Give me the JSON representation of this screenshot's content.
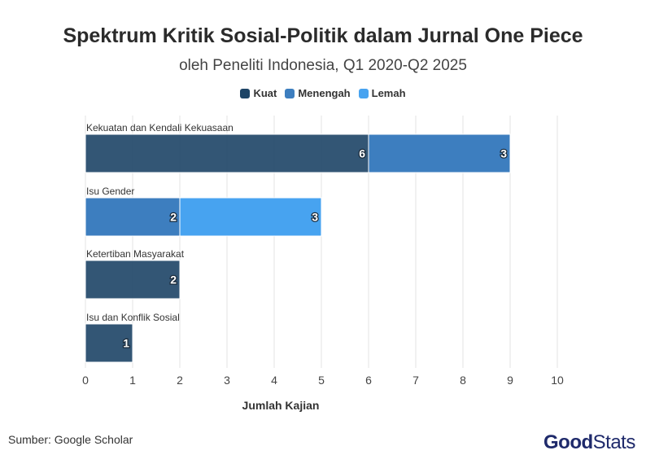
{
  "colors": {
    "Kuat": "#1d4466",
    "Menengah": "#3d7ebf",
    "Lemah": "#47a3f0"
  },
  "chart_data": {
    "type": "bar",
    "orientation": "horizontal",
    "stacked": true,
    "title": "Spektrum Kritik Sosial-Politik dalam Jurnal One Piece",
    "subtitle": "oleh Peneliti Indonesia, Q1 2020-Q2 2025",
    "xlabel": "Jumlah Kajian",
    "ylabel": "",
    "xlim": [
      0,
      10
    ],
    "xticks": [
      0,
      1,
      2,
      3,
      4,
      5,
      6,
      7,
      8,
      9,
      10
    ],
    "grid": true,
    "legend_position": "top",
    "categories": [
      "Kekuatan dan Kendali Kekuasaan",
      "Isu Gender",
      "Ketertiban Masyarakat",
      "Isu dan Konflik Sosial"
    ],
    "series": [
      {
        "name": "Kuat",
        "values": [
          6,
          0,
          2,
          1
        ]
      },
      {
        "name": "Menengah",
        "values": [
          3,
          2,
          0,
          0
        ]
      },
      {
        "name": "Lemah",
        "values": [
          0,
          3,
          0,
          0
        ]
      }
    ]
  },
  "footer": {
    "source": "Sumber: Google Scholar",
    "logo_good": "Good",
    "logo_stats": "Stats"
  }
}
